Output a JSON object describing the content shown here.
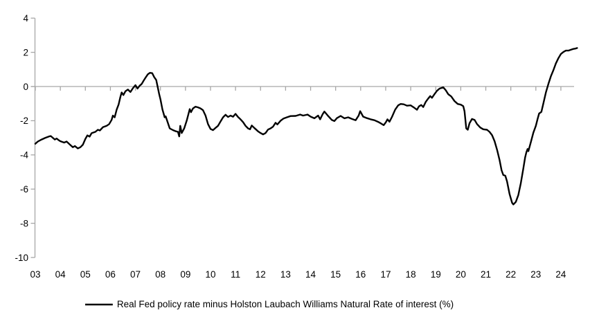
{
  "chart_data": {
    "type": "line",
    "title": "",
    "xlabel": "",
    "ylabel": "",
    "legend_position": "bottom",
    "grid": "zero-line-only",
    "colors": {
      "line": "#000000",
      "axis": "#a6a6a6",
      "text": "#000000",
      "background": "#ffffff"
    },
    "x_axis": {
      "tick_labels": [
        "03",
        "04",
        "05",
        "06",
        "07",
        "08",
        "09",
        "10",
        "11",
        "12",
        "13",
        "14",
        "15",
        "16",
        "17",
        "18",
        "19",
        "20",
        "21",
        "22",
        "23",
        "24"
      ],
      "tick_years": [
        2003,
        2004,
        2005,
        2006,
        2007,
        2008,
        2009,
        2010,
        2011,
        2012,
        2013,
        2014,
        2015,
        2016,
        2017,
        2018,
        2019,
        2020,
        2021,
        2022,
        2023,
        2024
      ],
      "range": [
        2003,
        2024.75
      ]
    },
    "y_axis": {
      "ticks": [
        4,
        2,
        0,
        -2,
        -4,
        -6,
        -8,
        -10
      ],
      "range": [
        -10,
        4
      ]
    },
    "series": [
      {
        "name": "Real Fed policy rate minus Holston Laubach Williams Natural Rate of interest (%)",
        "color": "#000000",
        "points": [
          [
            2003.0,
            -3.35
          ],
          [
            2003.1,
            -3.22
          ],
          [
            2003.25,
            -3.1
          ],
          [
            2003.4,
            -3.0
          ],
          [
            2003.55,
            -2.92
          ],
          [
            2003.62,
            -2.9
          ],
          [
            2003.7,
            -3.0
          ],
          [
            2003.78,
            -3.1
          ],
          [
            2003.85,
            -3.04
          ],
          [
            2003.92,
            -3.12
          ],
          [
            2004.0,
            -3.2
          ],
          [
            2004.15,
            -3.28
          ],
          [
            2004.25,
            -3.22
          ],
          [
            2004.4,
            -3.42
          ],
          [
            2004.5,
            -3.55
          ],
          [
            2004.58,
            -3.48
          ],
          [
            2004.7,
            -3.62
          ],
          [
            2004.8,
            -3.55
          ],
          [
            2004.9,
            -3.4
          ],
          [
            2005.0,
            -3.06
          ],
          [
            2005.08,
            -2.86
          ],
          [
            2005.17,
            -2.93
          ],
          [
            2005.25,
            -2.73
          ],
          [
            2005.4,
            -2.65
          ],
          [
            2005.5,
            -2.53
          ],
          [
            2005.58,
            -2.57
          ],
          [
            2005.7,
            -2.38
          ],
          [
            2005.85,
            -2.3
          ],
          [
            2005.95,
            -2.2
          ],
          [
            2006.05,
            -1.95
          ],
          [
            2006.1,
            -1.7
          ],
          [
            2006.17,
            -1.8
          ],
          [
            2006.25,
            -1.35
          ],
          [
            2006.33,
            -1.05
          ],
          [
            2006.4,
            -0.6
          ],
          [
            2006.45,
            -0.35
          ],
          [
            2006.52,
            -0.5
          ],
          [
            2006.6,
            -0.28
          ],
          [
            2006.7,
            -0.18
          ],
          [
            2006.8,
            -0.32
          ],
          [
            2006.9,
            -0.1
          ],
          [
            2007.0,
            0.08
          ],
          [
            2007.08,
            -0.12
          ],
          [
            2007.17,
            0.05
          ],
          [
            2007.25,
            0.15
          ],
          [
            2007.33,
            0.35
          ],
          [
            2007.42,
            0.55
          ],
          [
            2007.5,
            0.72
          ],
          [
            2007.58,
            0.8
          ],
          [
            2007.67,
            0.78
          ],
          [
            2007.75,
            0.55
          ],
          [
            2007.83,
            0.38
          ],
          [
            2007.9,
            -0.1
          ],
          [
            2007.95,
            -0.45
          ],
          [
            2008.0,
            -0.75
          ],
          [
            2008.08,
            -1.35
          ],
          [
            2008.13,
            -1.6
          ],
          [
            2008.17,
            -1.8
          ],
          [
            2008.21,
            -1.75
          ],
          [
            2008.29,
            -2.1
          ],
          [
            2008.37,
            -2.45
          ],
          [
            2008.5,
            -2.55
          ],
          [
            2008.62,
            -2.62
          ],
          [
            2008.7,
            -2.65
          ],
          [
            2008.75,
            -2.92
          ],
          [
            2008.79,
            -2.3
          ],
          [
            2008.85,
            -2.72
          ],
          [
            2008.95,
            -2.45
          ],
          [
            2009.05,
            -2.0
          ],
          [
            2009.12,
            -1.6
          ],
          [
            2009.17,
            -1.32
          ],
          [
            2009.22,
            -1.5
          ],
          [
            2009.3,
            -1.28
          ],
          [
            2009.4,
            -1.18
          ],
          [
            2009.5,
            -1.22
          ],
          [
            2009.6,
            -1.28
          ],
          [
            2009.7,
            -1.38
          ],
          [
            2009.8,
            -1.7
          ],
          [
            2009.9,
            -2.2
          ],
          [
            2010.0,
            -2.48
          ],
          [
            2010.1,
            -2.55
          ],
          [
            2010.2,
            -2.42
          ],
          [
            2010.3,
            -2.3
          ],
          [
            2010.4,
            -2.05
          ],
          [
            2010.5,
            -1.8
          ],
          [
            2010.6,
            -1.65
          ],
          [
            2010.7,
            -1.78
          ],
          [
            2010.8,
            -1.7
          ],
          [
            2010.9,
            -1.77
          ],
          [
            2011.0,
            -1.6
          ],
          [
            2011.1,
            -1.78
          ],
          [
            2011.2,
            -1.92
          ],
          [
            2011.3,
            -2.08
          ],
          [
            2011.4,
            -2.3
          ],
          [
            2011.5,
            -2.45
          ],
          [
            2011.58,
            -2.5
          ],
          [
            2011.65,
            -2.28
          ],
          [
            2011.75,
            -2.42
          ],
          [
            2011.9,
            -2.62
          ],
          [
            2012.0,
            -2.72
          ],
          [
            2012.1,
            -2.8
          ],
          [
            2012.2,
            -2.72
          ],
          [
            2012.3,
            -2.52
          ],
          [
            2012.4,
            -2.45
          ],
          [
            2012.5,
            -2.35
          ],
          [
            2012.6,
            -2.12
          ],
          [
            2012.67,
            -2.22
          ],
          [
            2012.8,
            -2.0
          ],
          [
            2012.92,
            -1.87
          ],
          [
            2013.05,
            -1.8
          ],
          [
            2013.2,
            -1.73
          ],
          [
            2013.4,
            -1.72
          ],
          [
            2013.58,
            -1.64
          ],
          [
            2013.7,
            -1.7
          ],
          [
            2013.88,
            -1.64
          ],
          [
            2014.0,
            -1.76
          ],
          [
            2014.15,
            -1.86
          ],
          [
            2014.3,
            -1.7
          ],
          [
            2014.38,
            -1.92
          ],
          [
            2014.48,
            -1.62
          ],
          [
            2014.55,
            -1.46
          ],
          [
            2014.7,
            -1.72
          ],
          [
            2014.85,
            -1.96
          ],
          [
            2014.95,
            -2.02
          ],
          [
            2015.05,
            -1.85
          ],
          [
            2015.2,
            -1.72
          ],
          [
            2015.35,
            -1.86
          ],
          [
            2015.5,
            -1.8
          ],
          [
            2015.62,
            -1.88
          ],
          [
            2015.8,
            -1.97
          ],
          [
            2015.92,
            -1.7
          ],
          [
            2015.98,
            -1.44
          ],
          [
            2016.1,
            -1.76
          ],
          [
            2016.25,
            -1.85
          ],
          [
            2016.4,
            -1.92
          ],
          [
            2016.55,
            -1.97
          ],
          [
            2016.7,
            -2.07
          ],
          [
            2016.82,
            -2.17
          ],
          [
            2016.92,
            -2.26
          ],
          [
            2017.0,
            -2.1
          ],
          [
            2017.07,
            -1.92
          ],
          [
            2017.15,
            -2.06
          ],
          [
            2017.25,
            -1.78
          ],
          [
            2017.38,
            -1.35
          ],
          [
            2017.5,
            -1.1
          ],
          [
            2017.6,
            -1.02
          ],
          [
            2017.72,
            -1.04
          ],
          [
            2017.85,
            -1.12
          ],
          [
            2018.0,
            -1.1
          ],
          [
            2018.12,
            -1.22
          ],
          [
            2018.25,
            -1.36
          ],
          [
            2018.33,
            -1.16
          ],
          [
            2018.42,
            -1.08
          ],
          [
            2018.5,
            -1.2
          ],
          [
            2018.6,
            -0.9
          ],
          [
            2018.7,
            -0.7
          ],
          [
            2018.78,
            -0.56
          ],
          [
            2018.85,
            -0.66
          ],
          [
            2018.95,
            -0.45
          ],
          [
            2019.05,
            -0.25
          ],
          [
            2019.15,
            -0.12
          ],
          [
            2019.3,
            -0.05
          ],
          [
            2019.4,
            -0.22
          ],
          [
            2019.5,
            -0.45
          ],
          [
            2019.62,
            -0.58
          ],
          [
            2019.75,
            -0.85
          ],
          [
            2019.88,
            -1.02
          ],
          [
            2020.0,
            -1.06
          ],
          [
            2020.1,
            -1.15
          ],
          [
            2020.15,
            -1.45
          ],
          [
            2020.22,
            -2.45
          ],
          [
            2020.28,
            -2.53
          ],
          [
            2020.35,
            -2.15
          ],
          [
            2020.45,
            -1.9
          ],
          [
            2020.55,
            -1.95
          ],
          [
            2020.65,
            -2.2
          ],
          [
            2020.78,
            -2.4
          ],
          [
            2020.9,
            -2.5
          ],
          [
            2021.05,
            -2.53
          ],
          [
            2021.15,
            -2.65
          ],
          [
            2021.25,
            -2.85
          ],
          [
            2021.35,
            -3.2
          ],
          [
            2021.45,
            -3.7
          ],
          [
            2021.55,
            -4.3
          ],
          [
            2021.63,
            -4.9
          ],
          [
            2021.7,
            -5.18
          ],
          [
            2021.78,
            -5.22
          ],
          [
            2021.85,
            -5.55
          ],
          [
            2021.95,
            -6.3
          ],
          [
            2022.05,
            -6.8
          ],
          [
            2022.1,
            -6.9
          ],
          [
            2022.2,
            -6.75
          ],
          [
            2022.3,
            -6.35
          ],
          [
            2022.4,
            -5.65
          ],
          [
            2022.5,
            -4.8
          ],
          [
            2022.57,
            -4.15
          ],
          [
            2022.62,
            -3.85
          ],
          [
            2022.67,
            -3.65
          ],
          [
            2022.7,
            -3.78
          ],
          [
            2022.8,
            -3.25
          ],
          [
            2022.9,
            -2.7
          ],
          [
            2023.0,
            -2.3
          ],
          [
            2023.07,
            -1.9
          ],
          [
            2023.13,
            -1.58
          ],
          [
            2023.22,
            -1.48
          ],
          [
            2023.3,
            -1.0
          ],
          [
            2023.4,
            -0.35
          ],
          [
            2023.5,
            0.15
          ],
          [
            2023.6,
            0.6
          ],
          [
            2023.7,
            0.95
          ],
          [
            2023.8,
            1.35
          ],
          [
            2023.9,
            1.65
          ],
          [
            2024.0,
            1.9
          ],
          [
            2024.1,
            2.02
          ],
          [
            2024.2,
            2.1
          ],
          [
            2024.3,
            2.1
          ],
          [
            2024.42,
            2.16
          ],
          [
            2024.5,
            2.2
          ],
          [
            2024.58,
            2.22
          ],
          [
            2024.65,
            2.25
          ]
        ]
      }
    ]
  }
}
